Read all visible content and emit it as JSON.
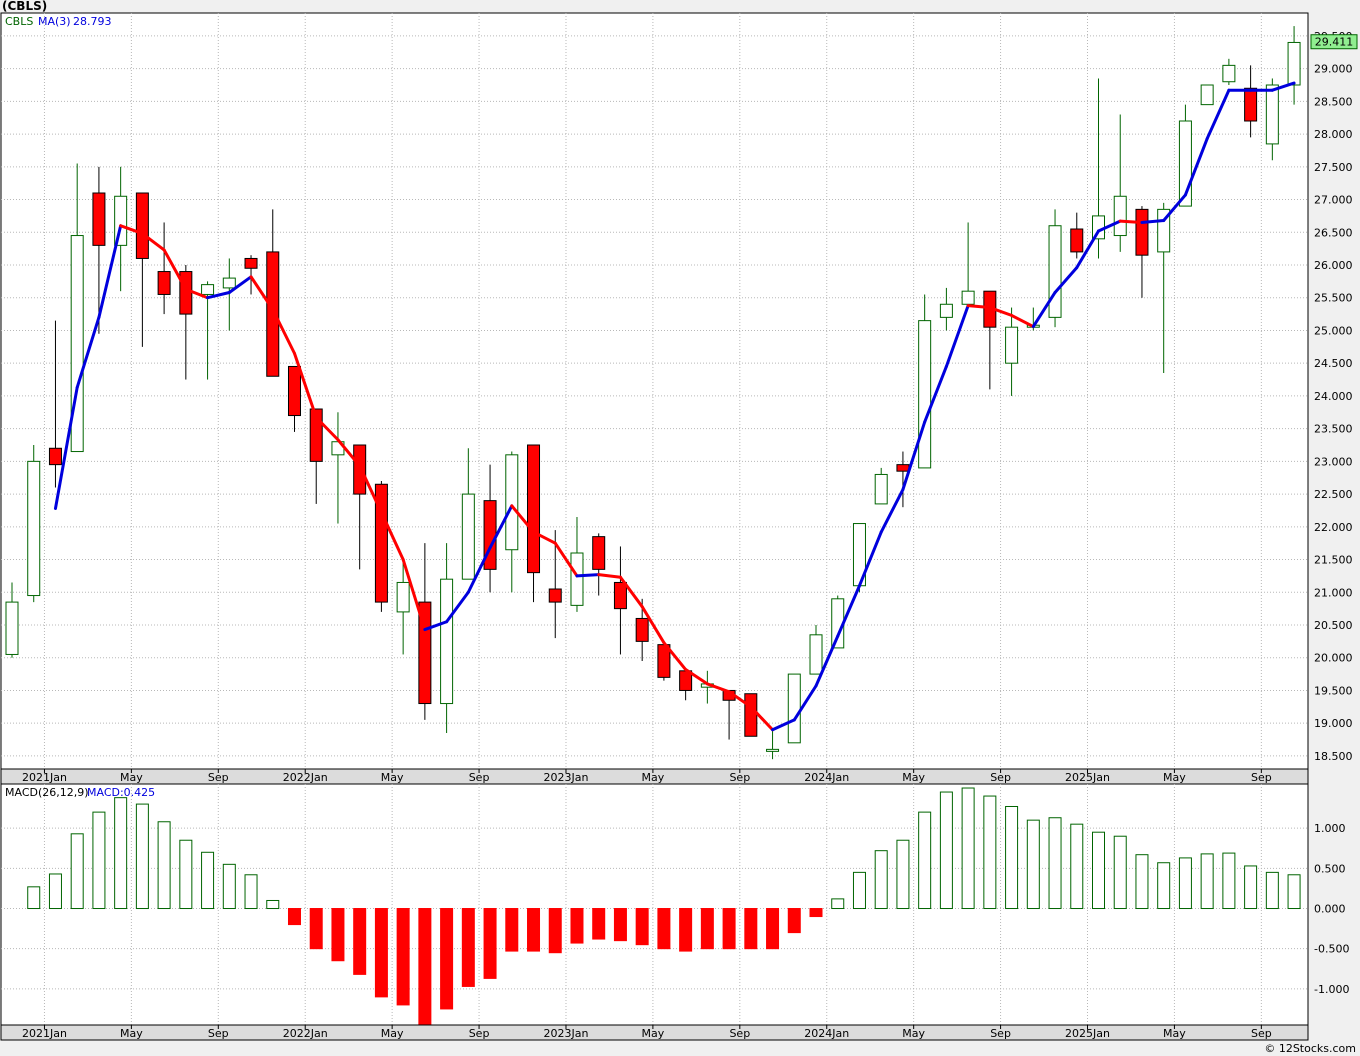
{
  "title": "(CBLS)",
  "watermark": "© 12Stocks.com",
  "colors": {
    "up_candle": "#006400",
    "down_candle": "#ff0000",
    "ma_up": "#0000dd",
    "ma_down": "#ff0000",
    "grid": "#b8b8b8",
    "last_price_box": "#90ee90"
  },
  "chart_data": [
    {
      "type": "candlestick",
      "interval": "monthly",
      "symbol_label": "CBLS",
      "ma_label": "MA(3)",
      "ma_value": "28.793",
      "last_price": "29.411",
      "ylim": [
        18.3,
        29.85
      ],
      "y_ticks": [
        "18.500",
        "19.000",
        "19.500",
        "20.000",
        "20.500",
        "21.000",
        "21.500",
        "22.000",
        "22.500",
        "23.000",
        "23.500",
        "24.000",
        "24.500",
        "25.000",
        "25.500",
        "26.000",
        "26.500",
        "27.000",
        "27.500",
        "28.000",
        "28.500",
        "29.000",
        "29.500"
      ],
      "x_ticks": [
        {
          "label": "2021Jan",
          "index": 2
        },
        {
          "label": "May",
          "index": 6
        },
        {
          "label": "Sep",
          "index": 10
        },
        {
          "label": "2022Jan",
          "index": 14
        },
        {
          "label": "May",
          "index": 18
        },
        {
          "label": "Sep",
          "index": 22
        },
        {
          "label": "2023Jan",
          "index": 26
        },
        {
          "label": "May",
          "index": 30
        },
        {
          "label": "Sep",
          "index": 34
        },
        {
          "label": "2024Jan",
          "index": 38
        },
        {
          "label": "May",
          "index": 42
        },
        {
          "label": "Sep",
          "index": 46
        },
        {
          "label": "2025Jan",
          "index": 50
        },
        {
          "label": "May",
          "index": 54
        },
        {
          "label": "Sep",
          "index": 58
        }
      ],
      "candles": [
        {
          "o": 20.05,
          "h": 21.15,
          "l": 20.0,
          "c": 20.85
        },
        {
          "o": 20.95,
          "h": 23.25,
          "l": 20.85,
          "c": 23.0
        },
        {
          "o": 23.2,
          "h": 25.15,
          "l": 22.6,
          "c": 22.95
        },
        {
          "o": 23.15,
          "h": 27.55,
          "l": 23.15,
          "c": 26.45
        },
        {
          "o": 27.1,
          "h": 27.5,
          "l": 24.95,
          "c": 26.3
        },
        {
          "o": 26.3,
          "h": 27.5,
          "l": 25.6,
          "c": 27.05
        },
        {
          "o": 27.1,
          "h": 27.05,
          "l": 24.75,
          "c": 26.1
        },
        {
          "o": 25.9,
          "h": 26.65,
          "l": 25.25,
          "c": 25.55
        },
        {
          "o": 25.9,
          "h": 26.0,
          "l": 24.25,
          "c": 25.25
        },
        {
          "o": 25.55,
          "h": 25.75,
          "l": 24.25,
          "c": 25.7
        },
        {
          "o": 25.65,
          "h": 26.1,
          "l": 25.0,
          "c": 25.8
        },
        {
          "o": 26.1,
          "h": 26.15,
          "l": 25.55,
          "c": 25.95
        },
        {
          "o": 26.2,
          "h": 26.85,
          "l": 24.3,
          "c": 24.3
        },
        {
          "o": 24.45,
          "h": 24.45,
          "l": 23.45,
          "c": 23.7
        },
        {
          "o": 23.8,
          "h": 23.8,
          "l": 22.35,
          "c": 23.0
        },
        {
          "o": 23.1,
          "h": 23.75,
          "l": 22.05,
          "c": 23.3
        },
        {
          "o": 23.25,
          "h": 23.25,
          "l": 21.35,
          "c": 22.5
        },
        {
          "o": 22.65,
          "h": 22.7,
          "l": 20.7,
          "c": 20.85
        },
        {
          "o": 20.7,
          "h": 21.5,
          "l": 20.05,
          "c": 21.15
        },
        {
          "o": 20.85,
          "h": 21.75,
          "l": 19.05,
          "c": 19.3
        },
        {
          "o": 19.3,
          "h": 21.75,
          "l": 18.85,
          "c": 21.2
        },
        {
          "o": 21.2,
          "h": 23.2,
          "l": 21.2,
          "c": 22.5
        },
        {
          "o": 22.4,
          "h": 22.95,
          "l": 21.0,
          "c": 21.35
        },
        {
          "o": 21.65,
          "h": 23.15,
          "l": 21.0,
          "c": 23.1
        },
        {
          "o": 23.25,
          "h": 23.25,
          "l": 20.85,
          "c": 21.3
        },
        {
          "o": 21.05,
          "h": 21.95,
          "l": 20.3,
          "c": 20.85
        },
        {
          "o": 20.8,
          "h": 22.15,
          "l": 20.7,
          "c": 21.6
        },
        {
          "o": 21.85,
          "h": 21.9,
          "l": 20.95,
          "c": 21.35
        },
        {
          "o": 21.15,
          "h": 21.7,
          "l": 20.05,
          "c": 20.75
        },
        {
          "o": 20.6,
          "h": 20.9,
          "l": 19.95,
          "c": 20.25
        },
        {
          "o": 20.2,
          "h": 20.2,
          "l": 19.65,
          "c": 19.7
        },
        {
          "o": 19.8,
          "h": 19.8,
          "l": 19.35,
          "c": 19.5
        },
        {
          "o": 19.55,
          "h": 19.8,
          "l": 19.3,
          "c": 19.6
        },
        {
          "o": 19.5,
          "h": 19.5,
          "l": 18.75,
          "c": 19.35
        },
        {
          "o": 19.45,
          "h": 19.45,
          "l": 18.8,
          "c": 18.8
        },
        {
          "o": 18.6,
          "h": 18.9,
          "l": 18.45,
          "c": 18.6
        },
        {
          "o": 18.7,
          "h": 19.75,
          "l": 18.7,
          "c": 19.75
        },
        {
          "o": 19.75,
          "h": 20.5,
          "l": 19.75,
          "c": 20.35
        },
        {
          "o": 20.15,
          "h": 20.95,
          "l": 20.15,
          "c": 20.9
        },
        {
          "o": 21.1,
          "h": 22.05,
          "l": 21.0,
          "c": 22.05
        },
        {
          "o": 22.35,
          "h": 22.9,
          "l": 22.35,
          "c": 22.8
        },
        {
          "o": 22.95,
          "h": 23.15,
          "l": 22.3,
          "c": 22.85
        },
        {
          "o": 22.9,
          "h": 25.55,
          "l": 22.9,
          "c": 25.15
        },
        {
          "o": 25.2,
          "h": 25.65,
          "l": 25.0,
          "c": 25.4
        },
        {
          "o": 25.4,
          "h": 26.65,
          "l": 25.4,
          "c": 25.6
        },
        {
          "o": 25.6,
          "h": 25.5,
          "l": 24.1,
          "c": 25.05
        },
        {
          "o": 24.5,
          "h": 25.35,
          "l": 24.0,
          "c": 25.05
        },
        {
          "o": 25.05,
          "h": 25.35,
          "l": 25.0,
          "c": 25.08
        },
        {
          "o": 25.2,
          "h": 26.85,
          "l": 25.05,
          "c": 26.6
        },
        {
          "o": 26.55,
          "h": 26.8,
          "l": 26.1,
          "c": 26.2
        },
        {
          "o": 26.4,
          "h": 28.85,
          "l": 26.1,
          "c": 26.75
        },
        {
          "o": 26.45,
          "h": 28.3,
          "l": 26.2,
          "c": 27.05
        },
        {
          "o": 26.85,
          "h": 26.9,
          "l": 25.5,
          "c": 26.15
        },
        {
          "o": 26.2,
          "h": 26.95,
          "l": 24.35,
          "c": 26.85
        },
        {
          "o": 26.9,
          "h": 28.45,
          "l": 26.9,
          "c": 28.2
        },
        {
          "o": 28.45,
          "h": 28.75,
          "l": 28.45,
          "c": 28.75
        },
        {
          "o": 28.8,
          "h": 29.15,
          "l": 28.75,
          "c": 29.05
        },
        {
          "o": 28.7,
          "h": 29.05,
          "l": 27.95,
          "c": 28.2
        },
        {
          "o": 27.85,
          "h": 28.85,
          "l": 27.6,
          "c": 28.75
        },
        {
          "o": 28.75,
          "h": 29.65,
          "l": 28.45,
          "c": 29.4
        }
      ],
      "ma": [
        null,
        null,
        22.28,
        24.13,
        25.2,
        26.6,
        26.48,
        26.23,
        25.63,
        25.5,
        25.58,
        25.82,
        25.32,
        24.65,
        23.67,
        23.33,
        22.93,
        22.22,
        21.5,
        20.43,
        20.55,
        21.0,
        21.68,
        22.32,
        21.92,
        21.75,
        21.25,
        21.27,
        21.23,
        20.78,
        20.23,
        19.82,
        19.6,
        19.48,
        19.25,
        18.9,
        19.05,
        19.57,
        20.33,
        21.1,
        21.92,
        22.57,
        23.6,
        24.45,
        25.38,
        25.35,
        25.23,
        25.06,
        25.58,
        25.96,
        26.52,
        26.67,
        26.65,
        26.68,
        27.07,
        27.93,
        28.67,
        28.67,
        28.67,
        28.78
      ]
    },
    {
      "type": "bar",
      "label": "MACD(26,12,9)",
      "value_label": "MACD:0.425",
      "ylim": [
        -1.45,
        1.55
      ],
      "y_ticks": [
        "-1.000",
        "-0.500",
        "0.000",
        "0.500",
        "1.000"
      ],
      "x_ticks": [
        {
          "label": "2021Jan",
          "index": 2
        },
        {
          "label": "May",
          "index": 6
        },
        {
          "label": "Sep",
          "index": 10
        },
        {
          "label": "2022Jan",
          "index": 14
        },
        {
          "label": "May",
          "index": 18
        },
        {
          "label": "Sep",
          "index": 22
        },
        {
          "label": "2023Jan",
          "index": 26
        },
        {
          "label": "May",
          "index": 30
        },
        {
          "label": "Sep",
          "index": 34
        },
        {
          "label": "2024Jan",
          "index": 38
        },
        {
          "label": "May",
          "index": 42
        },
        {
          "label": "Sep",
          "index": 46
        },
        {
          "label": "2025Jan",
          "index": 50
        },
        {
          "label": "May",
          "index": 54
        },
        {
          "label": "Sep",
          "index": 58
        }
      ],
      "values": [
        null,
        0.27,
        0.43,
        0.93,
        1.2,
        1.38,
        1.3,
        1.08,
        0.85,
        0.7,
        0.55,
        0.42,
        0.1,
        -0.2,
        -0.5,
        -0.65,
        -0.82,
        -1.1,
        -1.2,
        -1.45,
        -1.25,
        -0.97,
        -0.87,
        -0.53,
        -0.53,
        -0.55,
        -0.43,
        -0.38,
        -0.4,
        -0.45,
        -0.5,
        -0.53,
        -0.5,
        -0.5,
        -0.5,
        -0.5,
        -0.3,
        -0.1,
        0.12,
        0.45,
        0.72,
        0.85,
        1.2,
        1.45,
        1.5,
        1.4,
        1.27,
        1.1,
        1.13,
        1.05,
        0.95,
        0.9,
        0.67,
        0.57,
        0.63,
        0.68,
        0.69,
        0.53,
        0.45,
        0.42
      ]
    }
  ]
}
